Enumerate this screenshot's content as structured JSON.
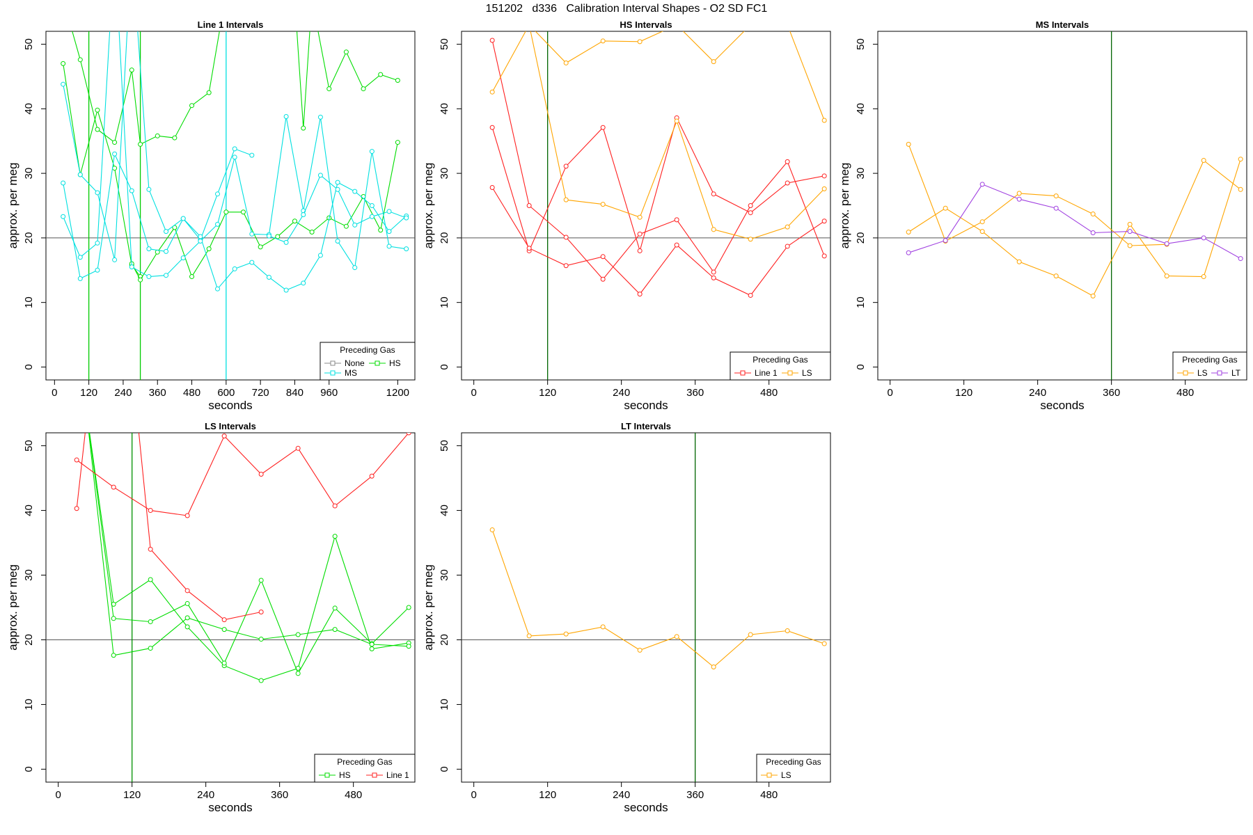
{
  "figure": {
    "title": "151202   d336   Calibration Interval Shapes - O2 SD FC1"
  },
  "chart_data": [
    {
      "id": "line1",
      "type": "line",
      "title": "Line 1 Intervals",
      "xlabel": "seconds",
      "ylabel": "approx. per meg",
      "xlim": [
        -30,
        1260
      ],
      "ylim": [
        -2,
        52
      ],
      "xticks": [
        0,
        120,
        240,
        360,
        480,
        600,
        720,
        840,
        960,
        1200
      ],
      "yticks": [
        0,
        10,
        20,
        30,
        40,
        50
      ],
      "hline": 20,
      "vlines": [
        {
          "x": 120,
          "color": "#00cc00"
        },
        {
          "x": 300,
          "color": "#00cc00"
        },
        {
          "x": 600,
          "color": "#00e0e0"
        }
      ],
      "legend": {
        "title": "Preceding Gas",
        "position": "bottom-right",
        "entries": [
          {
            "label": "None",
            "color": "#888888"
          },
          {
            "label": "HS",
            "color": "#00dd00"
          },
          {
            "label": "MS",
            "color": "#00e0e0"
          }
        ]
      },
      "series": [
        {
          "group": "HS",
          "color": "#00dd00",
          "x": [
            30,
            90,
            150,
            210,
            270,
            300
          ],
          "y": [
            47,
            29.8,
            39.8,
            30.8,
            15.8,
            14
          ]
        },
        {
          "group": "HS",
          "color": "#00dd00",
          "x": [
            30,
            90,
            150,
            210,
            270,
            300,
            360,
            420,
            480,
            540,
            600
          ],
          "y": [
            57,
            47.6,
            36.8,
            34.8,
            46,
            34.5,
            35.8,
            35.5,
            40.5,
            42.5,
            58
          ]
        },
        {
          "group": "HS",
          "color": "#00dd00",
          "x": [
            270,
            300,
            360,
            420,
            480,
            540,
            600,
            660,
            720,
            780,
            840,
            900,
            960,
            1020,
            1080,
            1140,
            1200
          ],
          "y": [
            16,
            13.5,
            17.8,
            21.6,
            14,
            18.3,
            24,
            24,
            18.6,
            20.2,
            22.6,
            20.9,
            23.1,
            21.8,
            26.4,
            21.2,
            34.8
          ]
        },
        {
          "group": "HS",
          "color": "#00dd00",
          "x": [
            840,
            870,
            900,
            960,
            1020,
            1080,
            1140,
            1200
          ],
          "y": [
            57,
            37,
            57,
            43.1,
            48.8,
            43.1,
            45.3,
            44.4
          ]
        },
        {
          "group": "MS",
          "color": "#00e0e0",
          "x": [
            30,
            90,
            150,
            210,
            270,
            330,
            390,
            450,
            510,
            570,
            630,
            690
          ],
          "y": [
            43.8,
            29.8,
            27,
            16.6,
            65,
            27.5,
            21,
            23,
            19.7,
            26.8,
            33.8,
            32.8
          ]
        },
        {
          "group": "MS",
          "color": "#00e0e0",
          "x": [
            30,
            90,
            150,
            210,
            270,
            330,
            390,
            450,
            510,
            570,
            630,
            690,
            750,
            810,
            870,
            930,
            990,
            1050,
            1110,
            1170,
            1230
          ],
          "y": [
            28.5,
            13.7,
            15,
            33,
            27.3,
            18.3,
            17.9,
            23,
            20.2,
            12.1,
            15.2,
            16.2,
            13.9,
            11.9,
            13,
            17.3,
            28.6,
            27.2,
            25,
            21,
            23.4
          ]
        },
        {
          "group": "MS",
          "color": "#00e0e0",
          "x": [
            30,
            90,
            150,
            210,
            270,
            330,
            390,
            450,
            510,
            570,
            630,
            690,
            750,
            810,
            870,
            930,
            990,
            1050,
            1110,
            1170,
            1230
          ],
          "y": [
            23.3,
            17,
            19.2,
            65,
            15.5,
            14,
            14.2,
            16.9,
            19.5,
            22.1,
            32.5,
            20.6,
            20.5,
            38.8,
            24.2,
            38.7,
            19.5,
            15.4,
            33.4,
            18.7,
            18.3
          ]
        },
        {
          "group": "MS",
          "color": "#00e0e0",
          "x": [
            750,
            810,
            870,
            930,
            990,
            1050,
            1110,
            1170,
            1230
          ],
          "y": [
            20.3,
            19.3,
            23.6,
            29.7,
            27.5,
            22,
            23.3,
            24.1,
            23.1
          ]
        }
      ]
    },
    {
      "id": "hs",
      "type": "line",
      "title": "HS Intervals",
      "xlabel": "seconds",
      "ylabel": "approx. per meg",
      "xlim": [
        -20,
        580
      ],
      "ylim": [
        -2,
        52
      ],
      "xticks": [
        0,
        120,
        240,
        360,
        480
      ],
      "yticks": [
        0,
        10,
        20,
        30,
        40,
        50
      ],
      "hline": 20,
      "vlines": [
        {
          "x": 120,
          "color": "#006400"
        }
      ],
      "legend": {
        "title": "Preceding Gas",
        "position": "bottom-right",
        "entries": [
          {
            "label": "Line 1",
            "color": "#ff2020"
          },
          {
            "label": "LS",
            "color": "#ffa500"
          }
        ]
      },
      "series": [
        {
          "group": "Line 1",
          "color": "#ff2020",
          "x": [
            30,
            90,
            150,
            210,
            270,
            330,
            390,
            450,
            510,
            570
          ],
          "y": [
            50.6,
            25,
            20.1,
            13.6,
            20.6,
            22.8,
            14.7,
            25,
            31.8,
            17.2
          ]
        },
        {
          "group": "Line 1",
          "color": "#ff2020",
          "x": [
            30,
            90,
            150,
            210,
            270,
            330,
            390,
            450,
            510,
            570
          ],
          "y": [
            37.1,
            18,
            31.1,
            37.1,
            18,
            38.6,
            26.8,
            23.9,
            28.5,
            29.6
          ]
        },
        {
          "group": "Line 1",
          "color": "#ff2020",
          "x": [
            30,
            90,
            150,
            210,
            270,
            330,
            390,
            450,
            510,
            570
          ],
          "y": [
            27.8,
            18.4,
            15.7,
            17.1,
            11.3,
            18.9,
            13.8,
            11.1,
            18.7,
            22.6
          ]
        },
        {
          "group": "LS",
          "color": "#ffa500",
          "x": [
            30,
            90,
            150,
            210,
            270,
            330,
            390,
            450,
            510,
            570
          ],
          "y": [
            42.6,
            53,
            47.1,
            50.5,
            50.4,
            53,
            47.3,
            53,
            53,
            38.2
          ]
        },
        {
          "group": "LS",
          "color": "#ffa500",
          "x": [
            90,
            150,
            210,
            270,
            330,
            390,
            450,
            510,
            570
          ],
          "y": [
            53,
            25.9,
            25.2,
            23.2,
            38.1,
            21.3,
            19.8,
            21.7,
            27.6
          ]
        }
      ]
    },
    {
      "id": "ms",
      "type": "line",
      "title": "MS Intervals",
      "xlabel": "seconds",
      "ylabel": "approx. per meg",
      "xlim": [
        -20,
        580
      ],
      "ylim": [
        -2,
        52
      ],
      "xticks": [
        0,
        120,
        240,
        360,
        480
      ],
      "yticks": [
        0,
        10,
        20,
        30,
        40,
        50
      ],
      "hline": 20,
      "vlines": [
        {
          "x": 360,
          "color": "#006400"
        }
      ],
      "legend": {
        "title": "Preceding Gas",
        "position": "bottom-right",
        "entries": [
          {
            "label": "LS",
            "color": "#ffa500"
          },
          {
            "label": "LT",
            "color": "#a040e0"
          }
        ]
      },
      "series": [
        {
          "group": "LS",
          "color": "#ffa500",
          "x": [
            30,
            90,
            150,
            210,
            270,
            330,
            390,
            450,
            510,
            570
          ],
          "y": [
            34.5,
            19.5,
            22.5,
            26.9,
            26.5,
            23.7,
            18.8,
            19,
            32,
            27.5
          ]
        },
        {
          "group": "LS",
          "color": "#ffa500",
          "x": [
            30,
            90,
            150,
            210,
            270,
            330,
            390,
            450,
            510,
            570
          ],
          "y": [
            20.9,
            24.6,
            21,
            16.3,
            14.1,
            11,
            22.1,
            14.1,
            14,
            32.2
          ]
        },
        {
          "group": "LT",
          "color": "#a040e0",
          "x": [
            30,
            90,
            150,
            210,
            270,
            330,
            390,
            450,
            510,
            570
          ],
          "y": [
            17.7,
            19.6,
            28.3,
            26,
            24.6,
            20.8,
            21,
            19.1,
            20,
            16.8
          ]
        }
      ]
    },
    {
      "id": "ls",
      "type": "line",
      "title": "LS Intervals",
      "xlabel": "seconds",
      "ylabel": "approx. per meg",
      "xlim": [
        -20,
        580
      ],
      "ylim": [
        -2,
        52
      ],
      "xticks": [
        0,
        120,
        240,
        360,
        480
      ],
      "yticks": [
        0,
        10,
        20,
        30,
        40,
        50
      ],
      "hline": 20,
      "vlines": [
        {
          "x": 120,
          "color": "#009000"
        }
      ],
      "legend": {
        "title": "Preceding Gas",
        "position": "bottom-right",
        "entries": [
          {
            "label": "HS",
            "color": "#00dd00"
          },
          {
            "label": "Line 1",
            "color": "#ff2020"
          }
        ]
      },
      "series": [
        {
          "group": "HS",
          "color": "#00dd00",
          "x": [
            45,
            90,
            150,
            210,
            270,
            330,
            390,
            450,
            510,
            570
          ],
          "y": [
            56,
            25.5,
            29.3,
            22,
            16,
            13.7,
            15.6,
            36,
            18.6,
            19.5
          ]
        },
        {
          "group": "HS",
          "color": "#00dd00",
          "x": [
            45,
            90,
            150,
            210,
            270,
            330,
            390,
            450,
            510,
            570
          ],
          "y": [
            56,
            23.3,
            22.8,
            25.6,
            16.4,
            29.2,
            14.8,
            24.9,
            19.4,
            25
          ]
        },
        {
          "group": "HS",
          "color": "#00dd00",
          "x": [
            45,
            90,
            150,
            210,
            270,
            330,
            390,
            450,
            510,
            570
          ],
          "y": [
            56,
            17.6,
            18.7,
            23.4,
            21.6,
            20.1,
            20.8,
            21.6,
            19.3,
            19
          ]
        },
        {
          "group": "Line 1",
          "color": "#ff2020",
          "x": [
            30,
            90,
            150,
            210,
            270,
            330,
            390,
            450,
            510,
            570
          ],
          "y": [
            47.8,
            43.6,
            40,
            39.2,
            51.5,
            45.6,
            49.6,
            40.7,
            45.3,
            52
          ]
        },
        {
          "group": "Line 1",
          "color": "#ff2020",
          "x": [
            30,
            45
          ],
          "y": [
            40.3,
            53
          ]
        },
        {
          "group": "Line 1",
          "color": "#ff2020",
          "x": [
            130,
            150,
            210,
            270,
            330
          ],
          "y": [
            53,
            34,
            27.6,
            23.1,
            24.3
          ]
        }
      ]
    },
    {
      "id": "lt",
      "type": "line",
      "title": "LT Intervals",
      "xlabel": "seconds",
      "ylabel": "approx. per meg",
      "xlim": [
        -20,
        580
      ],
      "ylim": [
        -2,
        52
      ],
      "xticks": [
        0,
        120,
        240,
        360,
        480
      ],
      "yticks": [
        0,
        10,
        20,
        30,
        40,
        50
      ],
      "hline": 20,
      "vlines": [
        {
          "x": 360,
          "color": "#006400"
        }
      ],
      "legend": {
        "title": "Preceding Gas",
        "position": "bottom-right",
        "entries": [
          {
            "label": "LS",
            "color": "#ffa500"
          }
        ]
      },
      "series": [
        {
          "group": "LS",
          "color": "#ffa500",
          "x": [
            30,
            90,
            150,
            210,
            270,
            330,
            390,
            450,
            510,
            570
          ],
          "y": [
            37,
            20.6,
            20.9,
            22,
            18.4,
            20.5,
            15.8,
            20.8,
            21.4,
            19.4
          ]
        }
      ]
    }
  ]
}
